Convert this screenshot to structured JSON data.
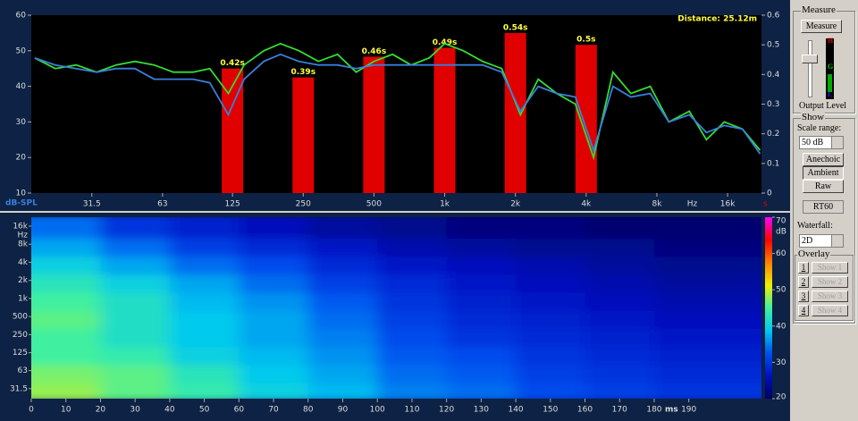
{
  "chart_data": [
    {
      "type": "line",
      "annotation": "Distance: 25.12m",
      "y_label": "dB-SPL",
      "y2_label": "s",
      "x_unit": "Hz",
      "xscale": "log",
      "xlim": [
        17.4,
        22300
      ],
      "xticks": [
        31.5,
        63,
        125,
        250,
        500,
        {
          "value": 1000,
          "label": "1k"
        },
        {
          "value": 2000,
          "label": "2k"
        },
        {
          "value": 4000,
          "label": "4k"
        },
        {
          "value": 8000,
          "label": "8k"
        },
        {
          "value": 16000,
          "label": "16k"
        }
      ],
      "ylim": [
        10,
        60
      ],
      "yticks": [
        10,
        20,
        30,
        40,
        50,
        60
      ],
      "y2lim": [
        0,
        0.6
      ],
      "y2ticks": [
        0,
        0.1,
        0.2,
        0.3,
        0.4,
        0.5,
        0.6
      ],
      "x": [
        18,
        22,
        27,
        33,
        40,
        48,
        58,
        70,
        85,
        100,
        120,
        140,
        170,
        200,
        240,
        290,
        350,
        420,
        500,
        600,
        720,
        860,
        1000,
        1200,
        1450,
        1750,
        2100,
        2500,
        3000,
        3600,
        4300,
        5200,
        6200,
        7500,
        9000,
        11000,
        13000,
        15500,
        18500,
        22000
      ],
      "series": [
        {
          "color": "#33dd33",
          "values": [
            48,
            45,
            46,
            44,
            46,
            47,
            46,
            44,
            44,
            45,
            38,
            46,
            50,
            52,
            50,
            47,
            49,
            44,
            47,
            49,
            46,
            48,
            52,
            50,
            47,
            45,
            32,
            42,
            38,
            35,
            20,
            44,
            38,
            40,
            30,
            33,
            25,
            30,
            28,
            22
          ]
        },
        {
          "color": "#3a7fdc",
          "values": [
            48,
            46,
            45,
            44,
            45,
            45,
            42,
            42,
            42,
            41,
            32,
            42,
            47,
            49,
            47,
            46,
            46,
            45,
            46,
            46,
            46,
            46,
            46,
            46,
            46,
            44,
            33,
            40,
            38,
            37,
            22,
            40,
            37,
            38,
            30,
            32,
            27,
            29,
            28,
            21
          ]
        }
      ],
      "bars": {
        "axis": "y2",
        "color": "#e00000",
        "x": [
          125,
          250,
          500,
          1000,
          2000,
          4000
        ],
        "values": [
          0.42,
          0.39,
          0.46,
          0.49,
          0.54,
          0.5
        ],
        "value_labels": [
          "0.42s",
          "0.39s",
          "0.46s",
          "0.49s",
          "0.54s",
          "0.5s"
        ]
      }
    },
    {
      "type": "heatmap",
      "x_unit": "ms",
      "y_unit": "Hz",
      "x": [
        0,
        20,
        40,
        60,
        80,
        100,
        120,
        140,
        160,
        180
      ],
      "xlim": [
        0,
        211
      ],
      "xticks": [
        0,
        10,
        20,
        30,
        40,
        50,
        60,
        70,
        80,
        90,
        100,
        110,
        120,
        130,
        140,
        150,
        160,
        170,
        180,
        190
      ],
      "y": [
        31.5,
        63,
        125,
        250,
        500,
        1000,
        2000,
        4000,
        8000,
        16000
      ],
      "ylim": [
        21.5,
        22500
      ],
      "yticks": [
        31.5,
        63,
        125,
        250,
        500,
        {
          "value": 1000,
          "label": "1k"
        },
        {
          "value": 2000,
          "label": "2k"
        },
        {
          "value": 4000,
          "label": "4k"
        },
        {
          "value": 8000,
          "label": "8k"
        },
        {
          "value": 16000,
          "label": "16k"
        }
      ],
      "z": [
        [
          48,
          46,
          44,
          40,
          38,
          35,
          34,
          32,
          31,
          30
        ],
        [
          47,
          46,
          43,
          39,
          37,
          34,
          33,
          31,
          30,
          29
        ],
        [
          45,
          44,
          40,
          38,
          36,
          33,
          32,
          30,
          29,
          28
        ],
        [
          45,
          42,
          39,
          37,
          35,
          32,
          30,
          29,
          28,
          27
        ],
        [
          46,
          42,
          39,
          37,
          34,
          31,
          29,
          28,
          27,
          26
        ],
        [
          45,
          42,
          38,
          36,
          33,
          30,
          28,
          27,
          26,
          25
        ],
        [
          43,
          40,
          37,
          34,
          31,
          29,
          27,
          26,
          25,
          24
        ],
        [
          40,
          37,
          34,
          32,
          29,
          27,
          26,
          25,
          24,
          23
        ],
        [
          37,
          34,
          31,
          29,
          27,
          25,
          24,
          23,
          23,
          22
        ],
        [
          34,
          30,
          28,
          26,
          24,
          23,
          22,
          22,
          21,
          21
        ]
      ],
      "colorbar": {
        "label": "dB",
        "lim": [
          20,
          70
        ],
        "ticks": [
          20,
          30,
          40,
          50,
          60,
          70
        ],
        "colormap": [
          "#000060",
          "#0010c0",
          "#0050f0",
          "#00c8f0",
          "#40f0a0",
          "#f0f000",
          "#ff8000",
          "#ff0000",
          "#ff00ff"
        ]
      }
    }
  ],
  "panel": {
    "measure": {
      "title": "Measure",
      "button": "Measure",
      "meter_labels": [
        "H",
        "G",
        "L"
      ],
      "output_label": "Output Level"
    },
    "show": {
      "title": "Show",
      "scale_label": "Scale range:",
      "scale_value": "50 dB",
      "buttons": [
        "Anechoic",
        "Ambient",
        "Raw"
      ],
      "rt60": "RT60",
      "waterfall_label": "Waterfall:",
      "waterfall_value": "2D"
    },
    "overlay": {
      "title": "Overlay",
      "rows": [
        {
          "num": "1",
          "label": "Show 1"
        },
        {
          "num": "2",
          "label": "Show 2"
        },
        {
          "num": "3",
          "label": "Show 3"
        },
        {
          "num": "4",
          "label": "Show 4"
        }
      ]
    }
  }
}
